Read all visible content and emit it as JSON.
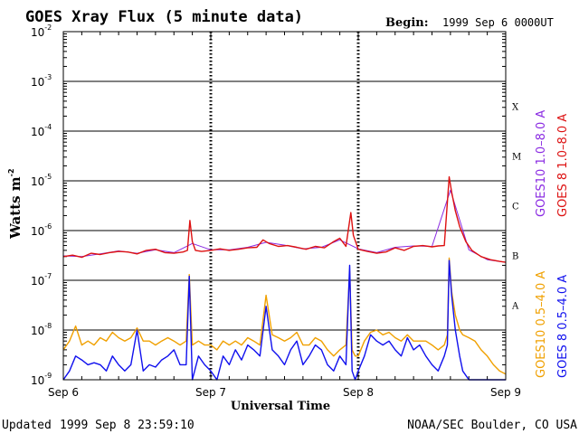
{
  "header": {
    "title": "GOES Xray Flux (5 minute data)",
    "begin_label": "Begin:",
    "begin_value": "1999 Sep 6 0000UT"
  },
  "footer": {
    "updated_label": "Updated",
    "updated_value": "1999 Sep  8 23:59:10",
    "credit": "NOAA/SEC Boulder, CO USA"
  },
  "chart_data": {
    "type": "line",
    "xlabel": "Universal Time",
    "ylabel": "Watts m",
    "ylabel_sup": "-2",
    "yscale": "log",
    "ylim": [
      1e-09,
      0.01
    ],
    "xlim_hours": [
      0,
      72
    ],
    "ytick_base": "10",
    "ytick_exponents": [
      "-9",
      "-8",
      "-7",
      "-6",
      "-5",
      "-4",
      "-3",
      "-2"
    ],
    "xticks": [
      {
        "label": "Sep 6",
        "hour": 0
      },
      {
        "label": "Sep 7",
        "hour": 24
      },
      {
        "label": "Sep 8",
        "hour": 48
      },
      {
        "label": "Sep 9",
        "hour": 72
      }
    ],
    "grid": {
      "horizontal_decades": true,
      "day_separators": true
    },
    "flare_classes": [
      {
        "label": "X",
        "log_center": -3.5
      },
      {
        "label": "M",
        "log_center": -4.5
      },
      {
        "label": "C",
        "log_center": -5.5
      },
      {
        "label": "B",
        "log_center": -6.5
      },
      {
        "label": "A",
        "log_center": -7.5
      }
    ],
    "legend": [
      {
        "text": "GOES 8 1.0–8.0 A",
        "color": "#dd1111"
      },
      {
        "text": "GOES10 1.0–8.0 A",
        "color": "#8a2be2"
      },
      {
        "text": "GOES 8 0.5–4.0 A",
        "color": "#1010ee"
      },
      {
        "text": "GOES10 0.5–4.0 A",
        "color": "#f0a000"
      }
    ],
    "series": [
      {
        "name": "GOES 8 1.0–8.0 A",
        "color": "#dd1111",
        "hours": [
          0,
          1.5,
          3,
          4.5,
          6,
          7.5,
          9,
          10.5,
          12,
          13.5,
          15,
          16.5,
          18,
          19.5,
          20.2,
          20.6,
          21,
          21.5,
          22.5,
          24,
          25.5,
          27,
          28.5,
          30,
          31.5,
          32.5,
          33.5,
          35,
          36.5,
          38,
          39.5,
          41,
          42.5,
          44,
          45,
          46,
          46.8,
          47.2,
          48,
          49.5,
          51,
          52.5,
          54,
          55.5,
          57,
          58.5,
          60,
          61,
          62,
          62.8,
          63.2,
          63.8,
          64.5,
          65.5,
          66.5,
          68,
          69.5,
          71,
          72
        ],
        "values": [
          3e-07,
          3.2e-07,
          2.9e-07,
          3.5e-07,
          3.3e-07,
          3.6e-07,
          3.8e-07,
          3.7e-07,
          3.4e-07,
          4e-07,
          4.2e-07,
          3.6e-07,
          3.5e-07,
          3.7e-07,
          4e-07,
          1.6e-06,
          6e-07,
          4e-07,
          3.8e-07,
          4e-07,
          4.3e-07,
          4e-07,
          4.2e-07,
          4.5e-07,
          4.6e-07,
          6.5e-07,
          5.5e-07,
          4.8e-07,
          5e-07,
          4.6e-07,
          4.2e-07,
          4.8e-07,
          4.5e-07,
          6e-07,
          7e-07,
          4.8e-07,
          2.3e-06,
          8e-07,
          4.2e-07,
          3.8e-07,
          3.5e-07,
          3.7e-07,
          4.5e-07,
          4e-07,
          4.8e-07,
          5e-07,
          4.7e-07,
          4.9e-07,
          5e-07,
          1.2e-05,
          6e-06,
          2.5e-06,
          1.2e-06,
          6e-07,
          4e-07,
          3e-07,
          2.6e-07,
          2.4e-07,
          2.3e-07
        ]
      },
      {
        "name": "GOES10 1.0–8.0 A",
        "color": "#8a2be2",
        "hours": [
          0,
          3,
          6,
          9,
          12,
          15,
          18,
          21,
          24,
          27,
          30,
          33,
          36,
          39,
          42,
          45,
          48,
          51,
          54,
          57,
          60,
          63,
          66,
          69,
          72
        ],
        "values": [
          3.1e-07,
          3e-07,
          3.4e-07,
          3.9e-07,
          3.5e-07,
          4.1e-07,
          3.6e-07,
          5.5e-07,
          4.1e-07,
          4.1e-07,
          4.6e-07,
          5.8e-07,
          5.1e-07,
          4.3e-07,
          4.6e-07,
          6.5e-07,
          4.3e-07,
          3.6e-07,
          4.6e-07,
          4.9e-07,
          4.8e-07,
          6.5e-06,
          4.1e-07,
          2.6e-07,
          2.3e-07
        ]
      },
      {
        "name": "GOES 8 0.5–4.0 A",
        "color": "#1010ee",
        "hours": [
          0,
          1,
          2,
          3,
          4,
          5,
          6,
          7,
          8,
          9,
          10,
          11,
          12,
          13,
          14,
          15,
          16,
          17,
          18,
          19,
          20,
          20.5,
          21,
          22,
          23,
          24,
          25,
          26,
          27,
          28,
          29,
          30,
          31,
          32,
          33,
          34,
          35,
          36,
          37,
          38,
          39,
          40,
          41,
          42,
          43,
          44,
          45,
          46,
          46.6,
          47,
          47.5,
          48,
          49,
          50,
          51,
          52,
          53,
          54,
          55,
          56,
          57,
          58,
          59,
          60,
          61,
          62,
          62.5,
          62.8,
          63.2,
          63.8,
          64.5,
          65,
          66,
          67,
          68,
          69,
          70,
          71,
          72
        ],
        "values": [
          1e-09,
          1.5e-09,
          3e-09,
          2.5e-09,
          2e-09,
          2.2e-09,
          2e-09,
          1.5e-09,
          3e-09,
          2e-09,
          1.5e-09,
          2e-09,
          1e-08,
          1.5e-09,
          2e-09,
          1.8e-09,
          2.5e-09,
          3e-09,
          4e-09,
          2e-09,
          2e-09,
          1.2e-07,
          1e-09,
          3e-09,
          2e-09,
          1.5e-09,
          1e-09,
          3e-09,
          2e-09,
          4e-09,
          2.5e-09,
          5e-09,
          4e-09,
          3e-09,
          3e-08,
          4e-09,
          3e-09,
          2e-09,
          4e-09,
          6e-09,
          2e-09,
          3e-09,
          5e-09,
          4e-09,
          2e-09,
          1.5e-09,
          3e-09,
          2e-09,
          2e-07,
          1.5e-09,
          1e-09,
          1.5e-09,
          3e-09,
          8e-09,
          6e-09,
          5e-09,
          6e-09,
          4e-09,
          3e-09,
          7e-09,
          4e-09,
          5e-09,
          3e-09,
          2e-09,
          1.5e-09,
          3e-09,
          5e-09,
          2.5e-07,
          5e-08,
          1e-08,
          3e-09,
          1.5e-09,
          1e-09,
          1e-09,
          1e-09,
          1e-09,
          1e-09,
          1e-09,
          1e-09
        ]
      },
      {
        "name": "GOES10 0.5–4.0 A",
        "color": "#f0a000",
        "hours": [
          0,
          1,
          2,
          3,
          4,
          5,
          6,
          7,
          8,
          9,
          10,
          11,
          12,
          13,
          14,
          15,
          16,
          17,
          18,
          19,
          20,
          20.5,
          21,
          22,
          23,
          24,
          25,
          26,
          27,
          28,
          29,
          30,
          31,
          32,
          33,
          34,
          35,
          36,
          37,
          38,
          39,
          40,
          41,
          42,
          43,
          44,
          45,
          46,
          46.6,
          47,
          47.5,
          48,
          49,
          50,
          51,
          52,
          53,
          54,
          55,
          56,
          57,
          58,
          59,
          60,
          61,
          62,
          62.5,
          62.8,
          63.2,
          63.8,
          64.5,
          65,
          66,
          67,
          68,
          69,
          70,
          71,
          72
        ],
        "values": [
          4e-09,
          6e-09,
          1.2e-08,
          5e-09,
          6e-09,
          5e-09,
          7e-09,
          6e-09,
          9e-09,
          7e-09,
          6e-09,
          7e-09,
          1.1e-08,
          6e-09,
          6e-09,
          5e-09,
          6e-09,
          7e-09,
          6e-09,
          5e-09,
          6e-09,
          1.3e-07,
          5e-09,
          6e-09,
          5e-09,
          5e-09,
          4e-09,
          6e-09,
          5e-09,
          6e-09,
          5e-09,
          7e-09,
          6e-09,
          5e-09,
          5e-08,
          8e-09,
          7e-09,
          6e-09,
          7e-09,
          9e-09,
          5e-09,
          5e-09,
          7e-09,
          6e-09,
          4e-09,
          3e-09,
          4e-09,
          5e-09,
          1.5e-07,
          4e-09,
          3e-09,
          3e-09,
          6e-09,
          9e-09,
          1e-08,
          8e-09,
          9e-09,
          7e-09,
          6e-09,
          8e-09,
          6e-09,
          6e-09,
          6e-09,
          5e-09,
          4e-09,
          5e-09,
          8e-09,
          2.8e-07,
          6e-08,
          2e-08,
          1e-08,
          8e-09,
          7e-09,
          6e-09,
          4e-09,
          3e-09,
          2e-09,
          1.5e-09,
          1.3e-09
        ]
      }
    ]
  }
}
